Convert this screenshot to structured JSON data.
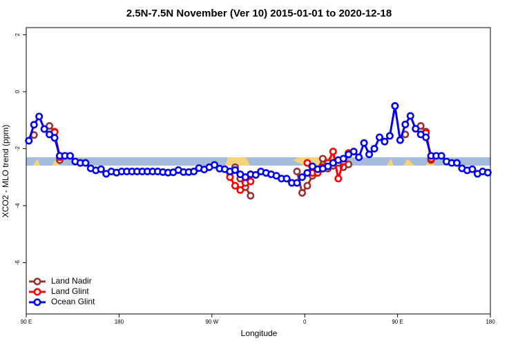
{
  "chart_data": {
    "type": "line",
    "title": "2.5N-7.5N November (Ver 10)   2015-01-01 to 2020-12-18",
    "x_label": "Longitude",
    "y_label": "XCO2 - MLO trend (ppm)",
    "xlim": [
      90,
      540
    ],
    "xticks": [
      {
        "value": 90,
        "label": "90 E"
      },
      180,
      {
        "value": 270,
        "label": "90 W"
      },
      {
        "value": 360,
        "label": "0"
      },
      {
        "value": 450,
        "label": "90 E"
      },
      {
        "value": 540,
        "label": "180"
      }
    ],
    "ylim": [
      -7.8,
      2.25
    ],
    "yticks": [
      2,
      0,
      -2,
      -4,
      -6
    ],
    "legend": "bottom-left",
    "x": [
      92.5,
      97.5,
      102.5,
      107.5,
      112.5,
      117.5,
      122.5,
      127.5,
      132.5,
      137.5,
      142.5,
      147.5,
      152.5,
      157.5,
      162.5,
      167.5,
      172.5,
      177.5,
      182.5,
      187.5,
      192.5,
      197.5,
      202.5,
      207.5,
      212.5,
      217.5,
      222.5,
      227.5,
      232.5,
      237.5,
      242.5,
      247.5,
      252.5,
      257.5,
      262.5,
      267.5,
      272.5,
      277.5,
      282.5,
      287.5,
      292.5,
      297.5,
      302.5,
      307.5,
      312.5,
      317.5,
      322.5,
      327.5,
      332.5,
      337.5,
      342.5,
      347.5,
      352.5,
      357.5,
      362.5,
      367.5,
      372.5,
      377.5,
      382.5,
      387.5,
      392.5,
      397.5,
      402.5,
      407.5,
      412.5,
      417.5,
      422.5,
      427.5,
      432.5,
      437.5,
      442.5,
      447.5,
      452.5,
      457.5,
      462.5,
      467.5,
      472.5,
      477.5,
      482.5,
      487.5,
      492.5,
      497.5,
      502.5,
      507.5,
      512.5,
      517.5,
      522.5,
      527.5,
      532.5,
      537.5
    ],
    "series": [
      {
        "name": "Land Nadir",
        "color": "#993333",
        "values": [
          null,
          -1.52,
          null,
          null,
          -1.2,
          -1.4,
          -2.4,
          null,
          null,
          null,
          null,
          null,
          null,
          null,
          null,
          null,
          null,
          null,
          null,
          null,
          null,
          null,
          null,
          null,
          null,
          null,
          null,
          null,
          null,
          null,
          null,
          null,
          null,
          null,
          null,
          null,
          null,
          null,
          null,
          -2.85,
          -2.65,
          -3.05,
          -3.35,
          -3.65,
          null,
          null,
          null,
          null,
          null,
          null,
          null,
          null,
          -2.8,
          -3.55,
          -3.3,
          -2.95,
          -2.75,
          -2.35,
          -2.7,
          -2.6,
          -2.5,
          -2.65,
          -2.55,
          null,
          null,
          null,
          null,
          null,
          null,
          null,
          null,
          null,
          null,
          -1.5,
          null,
          null,
          -1.2,
          -1.4,
          -2.4,
          null,
          null,
          null,
          null,
          null,
          null,
          null,
          null,
          null,
          null,
          null
        ]
      },
      {
        "name": "Land Glint",
        "color": "#ff0000",
        "values": [
          null,
          null,
          null,
          null,
          null,
          -1.42,
          -2.3,
          null,
          null,
          null,
          null,
          null,
          null,
          null,
          null,
          null,
          null,
          null,
          null,
          null,
          null,
          null,
          null,
          null,
          null,
          null,
          null,
          null,
          null,
          null,
          null,
          null,
          null,
          null,
          null,
          null,
          null,
          null,
          null,
          -3.0,
          -3.3,
          -3.45,
          -3.2,
          -3.15,
          null,
          null,
          null,
          null,
          null,
          null,
          null,
          null,
          null,
          null,
          -2.5,
          -2.85,
          -2.85,
          -2.65,
          -2.5,
          -2.1,
          -3.05,
          -2.45,
          -2.15,
          null,
          null,
          null,
          null,
          null,
          null,
          null,
          null,
          null,
          null,
          null,
          null,
          null,
          null,
          -1.45,
          -2.35,
          null,
          null,
          null,
          null,
          null,
          null,
          null,
          null,
          null,
          null,
          null
        ]
      },
      {
        "name": "Ocean Glint",
        "color": "#0000ee",
        "values": [
          -1.72,
          -1.16,
          -0.87,
          -1.31,
          -1.5,
          -1.62,
          -2.25,
          -2.25,
          -2.25,
          -2.45,
          -2.5,
          -2.5,
          -2.69,
          -2.76,
          -2.72,
          -2.88,
          -2.8,
          -2.84,
          -2.8,
          -2.8,
          -2.8,
          -2.8,
          -2.8,
          -2.8,
          -2.8,
          -2.8,
          -2.82,
          -2.84,
          -2.83,
          -2.75,
          -2.82,
          -2.82,
          -2.8,
          -2.68,
          -2.73,
          -2.65,
          -2.57,
          -2.7,
          -2.72,
          -2.8,
          -2.75,
          -2.9,
          -3.0,
          -2.9,
          -2.92,
          -2.8,
          -2.85,
          -2.9,
          -2.95,
          -3.05,
          -3.05,
          -3.2,
          -3.2,
          -3.0,
          -2.85,
          -2.62,
          -2.72,
          -2.7,
          -2.62,
          -2.5,
          -2.4,
          -2.35,
          -2.2,
          -2.1,
          -2.3,
          -1.8,
          -2.2,
          -2.0,
          -1.6,
          -1.75,
          -1.55,
          -0.5,
          -1.7,
          -1.15,
          -0.85,
          -1.3,
          -1.5,
          -1.6,
          -2.25,
          -2.25,
          -2.25,
          -2.45,
          -2.5,
          -2.5,
          -2.69,
          -2.76,
          -2.72,
          -2.88,
          -2.8,
          -2.84
        ]
      }
    ]
  }
}
